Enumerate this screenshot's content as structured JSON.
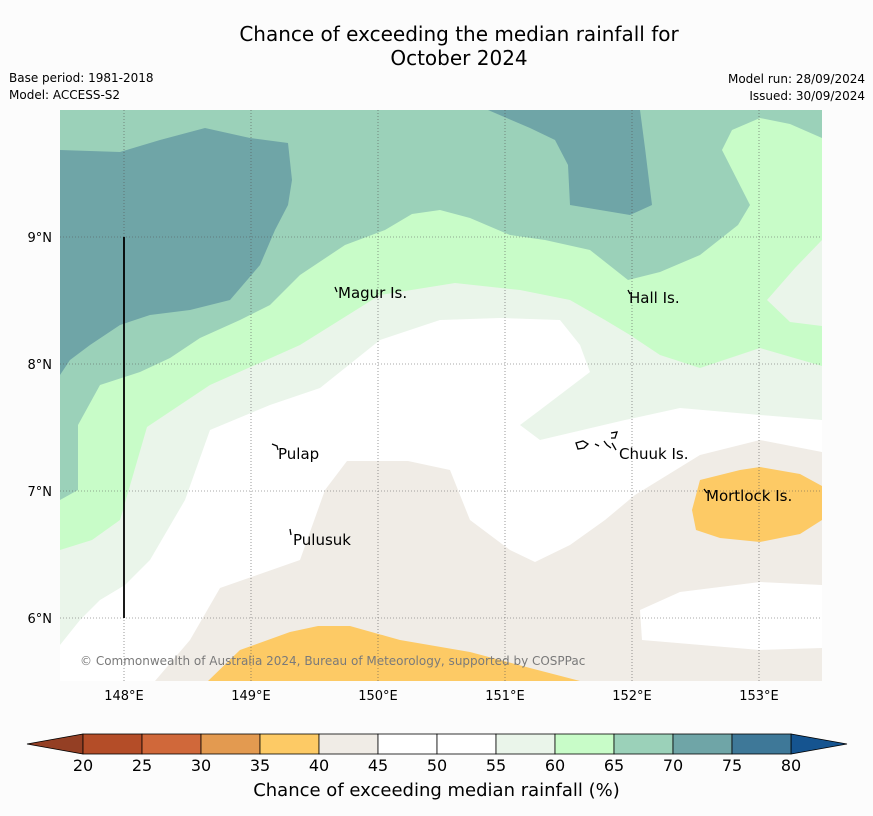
{
  "title": {
    "line1": "Chance of exceeding the median rainfall for",
    "line2": "October 2024"
  },
  "meta": {
    "base_period": "Base period: 1981-2018",
    "model": "Model: ACCESS-S2",
    "model_run": "Model run: 28/09/2024",
    "issued": "Issued: 30/09/2024"
  },
  "map": {
    "lon_ticks": [
      "148°E",
      "149°E",
      "150°E",
      "151°E",
      "152°E",
      "153°E"
    ],
    "lat_ticks": [
      "9°N",
      "8°N",
      "7°N",
      "6°N"
    ],
    "places": [
      "Magur Is.",
      "Hall Is.",
      "Pulap",
      "Chuuk Is.",
      "Mortlock Is.",
      "Pulusuk"
    ],
    "copyright": "© Commonwealth of Australia 2024, Bureau of Meteorology, supported by COSPPac",
    "colors": {
      "c35_40": "#fdca65",
      "c40_45": "#f0ece6",
      "c45_55": "#ffffff",
      "c55_60": "#eaf5ea",
      "c60_65": "#c8fcc8",
      "c65_70": "#9bd1b9",
      "c70_75": "#6fa5a7"
    }
  },
  "colorbar": {
    "ticks": [
      "20",
      "25",
      "30",
      "35",
      "40",
      "45",
      "50",
      "55",
      "60",
      "65",
      "70",
      "75",
      "80"
    ],
    "colors": [
      "#b44d28",
      "#d0683a",
      "#e39a50",
      "#fdca65",
      "#f0ece6",
      "#ffffff",
      "#ffffff",
      "#eaf5ea",
      "#c8fcc8",
      "#9bd1b9",
      "#6fa5a7",
      "#3e7898"
    ],
    "under_color": "#943f24",
    "over_color": "#155490",
    "label": "Chance of exceeding median rainfall (%)"
  }
}
